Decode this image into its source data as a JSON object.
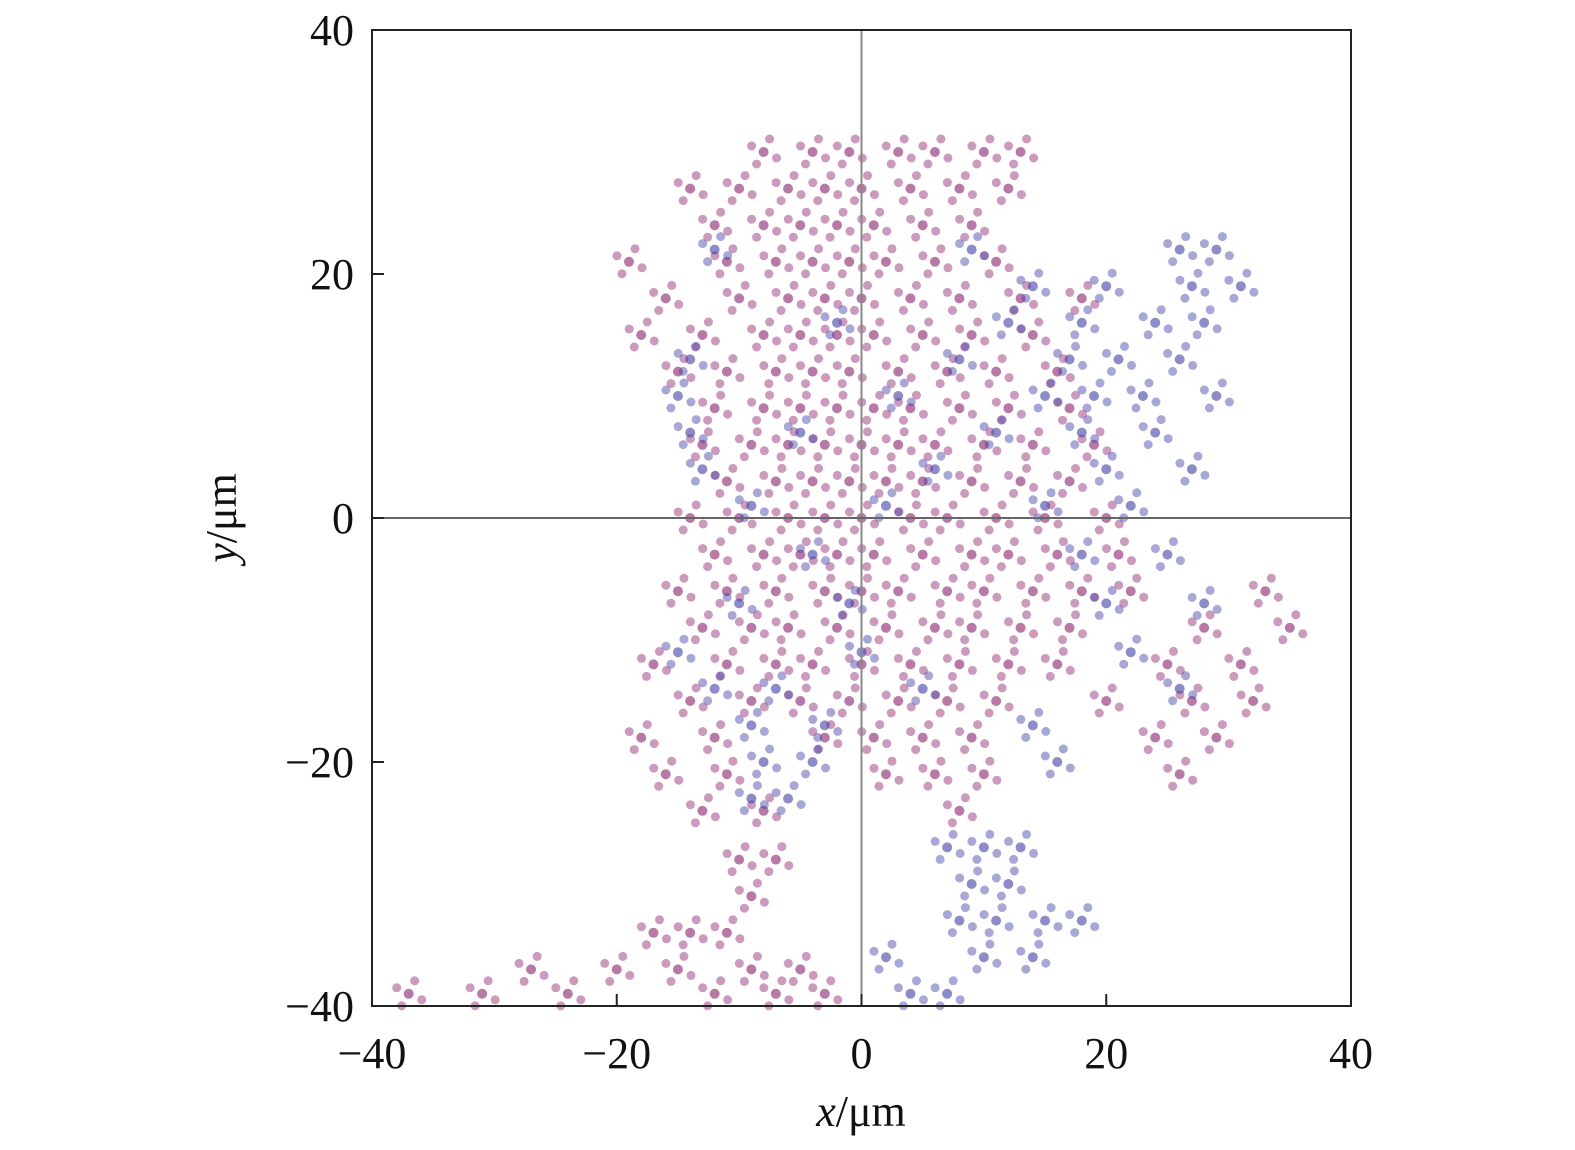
{
  "chart_data": {
    "type": "scatter",
    "xlabel_var": "x",
    "xlabel_unit": "/μm",
    "ylabel_var": "y",
    "ylabel_unit": "/μm",
    "xlim": [
      -40,
      40
    ],
    "ylim": [
      -40,
      40
    ],
    "xticks": [
      "−40",
      "−20",
      "0",
      "20",
      "40"
    ],
    "yticks": [
      "40",
      "20",
      "0",
      "−20",
      "−40"
    ],
    "xtick_values": [
      -40,
      -20,
      0,
      20,
      40
    ],
    "ytick_values": [
      40,
      20,
      0,
      -20,
      -40
    ],
    "grid": false,
    "zero_lines": true,
    "series": [
      {
        "color": "#8b1f6a",
        "points": [
          [
            -8,
            30
          ],
          [
            -4,
            30
          ],
          [
            -1,
            30
          ],
          [
            3,
            30
          ],
          [
            6,
            30
          ],
          [
            10,
            30
          ],
          [
            13,
            30
          ],
          [
            -14,
            27
          ],
          [
            -10,
            27
          ],
          [
            -6,
            27
          ],
          [
            -3,
            27
          ],
          [
            0,
            27
          ],
          [
            4,
            27
          ],
          [
            8,
            27
          ],
          [
            12,
            27
          ],
          [
            -12,
            24
          ],
          [
            -8,
            24
          ],
          [
            -5,
            24
          ],
          [
            -2,
            24
          ],
          [
            1,
            24
          ],
          [
            5,
            24
          ],
          [
            9,
            24
          ],
          [
            -19,
            21
          ],
          [
            -11,
            21
          ],
          [
            -7,
            21
          ],
          [
            -4,
            21
          ],
          [
            -1,
            21
          ],
          [
            2,
            21
          ],
          [
            6,
            21
          ],
          [
            11,
            21
          ],
          [
            -16,
            18
          ],
          [
            -10,
            18
          ],
          [
            -6,
            18
          ],
          [
            -3,
            18
          ],
          [
            0,
            18
          ],
          [
            4,
            18
          ],
          [
            8,
            18
          ],
          [
            13,
            18
          ],
          [
            18,
            18
          ],
          [
            -18,
            15
          ],
          [
            -13,
            15
          ],
          [
            -8,
            15
          ],
          [
            -5,
            15
          ],
          [
            -2,
            15
          ],
          [
            1,
            15
          ],
          [
            5,
            15
          ],
          [
            9,
            15
          ],
          [
            14,
            15
          ],
          [
            -15,
            12
          ],
          [
            -11,
            12
          ],
          [
            -7,
            12
          ],
          [
            -4,
            12
          ],
          [
            -1,
            12
          ],
          [
            3,
            12
          ],
          [
            7,
            12
          ],
          [
            11,
            12
          ],
          [
            16,
            12
          ],
          [
            -12,
            9
          ],
          [
            -8,
            9
          ],
          [
            -5,
            9
          ],
          [
            -2,
            9
          ],
          [
            1,
            9
          ],
          [
            4,
            9
          ],
          [
            8,
            9
          ],
          [
            12,
            9
          ],
          [
            17,
            9
          ],
          [
            -13,
            6
          ],
          [
            -9,
            6
          ],
          [
            -6,
            6
          ],
          [
            -3,
            6
          ],
          [
            0,
            6
          ],
          [
            3,
            6
          ],
          [
            6,
            6
          ],
          [
            10,
            6
          ],
          [
            14,
            6
          ],
          [
            19,
            6
          ],
          [
            -11,
            3
          ],
          [
            -7,
            3
          ],
          [
            -4,
            3
          ],
          [
            -1,
            3
          ],
          [
            2,
            3
          ],
          [
            5,
            3
          ],
          [
            9,
            3
          ],
          [
            13,
            3
          ],
          [
            17,
            3
          ],
          [
            -14,
            0
          ],
          [
            -10,
            0
          ],
          [
            -6,
            0
          ],
          [
            -3,
            0
          ],
          [
            0,
            0
          ],
          [
            4,
            0
          ],
          [
            7,
            0
          ],
          [
            11,
            0
          ],
          [
            15,
            0
          ],
          [
            20,
            0
          ],
          [
            -12,
            -3
          ],
          [
            -8,
            -3
          ],
          [
            -5,
            -3
          ],
          [
            -2,
            -3
          ],
          [
            1,
            -3
          ],
          [
            5,
            -3
          ],
          [
            9,
            -3
          ],
          [
            12,
            -3
          ],
          [
            16,
            -3
          ],
          [
            21,
            -3
          ],
          [
            -15,
            -6
          ],
          [
            -11,
            -6
          ],
          [
            -7,
            -6
          ],
          [
            -3,
            -6
          ],
          [
            0,
            -6
          ],
          [
            3,
            -6
          ],
          [
            7,
            -6
          ],
          [
            10,
            -6
          ],
          [
            14,
            -6
          ],
          [
            18,
            -6
          ],
          [
            22,
            -6
          ],
          [
            33,
            -6
          ],
          [
            -13,
            -9
          ],
          [
            -9,
            -9
          ],
          [
            -6,
            -9
          ],
          [
            -2,
            -9
          ],
          [
            2,
            -9
          ],
          [
            6,
            -9
          ],
          [
            9,
            -9
          ],
          [
            13,
            -9
          ],
          [
            17,
            -9
          ],
          [
            28,
            -9
          ],
          [
            35,
            -9
          ],
          [
            -17,
            -12
          ],
          [
            -11,
            -12
          ],
          [
            -7,
            -12
          ],
          [
            -4,
            -12
          ],
          [
            0,
            -12
          ],
          [
            4,
            -12
          ],
          [
            8,
            -12
          ],
          [
            12,
            -12
          ],
          [
            16,
            -12
          ],
          [
            25,
            -12
          ],
          [
            31,
            -12
          ],
          [
            -14,
            -15
          ],
          [
            -9,
            -15
          ],
          [
            -5,
            -15
          ],
          [
            -1,
            -15
          ],
          [
            3,
            -15
          ],
          [
            7,
            -15
          ],
          [
            11,
            -15
          ],
          [
            20,
            -15
          ],
          [
            27,
            -15
          ],
          [
            32,
            -15
          ],
          [
            -18,
            -18
          ],
          [
            -12,
            -18
          ],
          [
            -3,
            -18
          ],
          [
            1,
            -18
          ],
          [
            5,
            -18
          ],
          [
            9,
            -18
          ],
          [
            24,
            -18
          ],
          [
            29,
            -18
          ],
          [
            -16,
            -21
          ],
          [
            -11,
            -21
          ],
          [
            2,
            -21
          ],
          [
            6,
            -21
          ],
          [
            10,
            -21
          ],
          [
            26,
            -21
          ],
          [
            -13,
            -24
          ],
          [
            -8,
            -24
          ],
          [
            8,
            -24
          ],
          [
            -10,
            -28
          ],
          [
            -7,
            -28
          ],
          [
            -9,
            -31
          ],
          [
            -17,
            -34
          ],
          [
            -14,
            -34
          ],
          [
            -11,
            -34
          ],
          [
            -27,
            -37
          ],
          [
            -20,
            -37
          ],
          [
            -15,
            -37
          ],
          [
            -9,
            -37
          ],
          [
            -5,
            -37
          ],
          [
            -37,
            -39
          ],
          [
            -31,
            -39
          ],
          [
            -24,
            -39
          ],
          [
            -12,
            -39
          ],
          [
            -7,
            -39
          ],
          [
            -3,
            -39
          ]
        ]
      },
      {
        "color": "#3f3fa8",
        "points": [
          [
            -12,
            22
          ],
          [
            9,
            22
          ],
          [
            26,
            22
          ],
          [
            29,
            22
          ],
          [
            14,
            19
          ],
          [
            20,
            19
          ],
          [
            27,
            19
          ],
          [
            31,
            19
          ],
          [
            -2,
            16
          ],
          [
            12,
            16
          ],
          [
            18,
            16
          ],
          [
            24,
            16
          ],
          [
            28,
            16
          ],
          [
            -14,
            13
          ],
          [
            8,
            13
          ],
          [
            17,
            13
          ],
          [
            21,
            13
          ],
          [
            26,
            13
          ],
          [
            -15,
            10
          ],
          [
            3,
            10
          ],
          [
            15,
            10
          ],
          [
            19,
            10
          ],
          [
            23,
            10
          ],
          [
            29,
            10
          ],
          [
            -14,
            7
          ],
          [
            -5,
            7
          ],
          [
            11,
            7
          ],
          [
            18,
            7
          ],
          [
            24,
            7
          ],
          [
            -13,
            4
          ],
          [
            6,
            4
          ],
          [
            20,
            4
          ],
          [
            27,
            4
          ],
          [
            -9,
            1
          ],
          [
            2,
            1
          ],
          [
            15,
            1
          ],
          [
            22,
            1
          ],
          [
            -4,
            -3
          ],
          [
            18,
            -3
          ],
          [
            25,
            -3
          ],
          [
            -10,
            -7
          ],
          [
            -1,
            -7
          ],
          [
            20,
            -7
          ],
          [
            28,
            -7
          ],
          [
            -15,
            -11
          ],
          [
            0,
            -11
          ],
          [
            22,
            -11
          ],
          [
            -12,
            -14
          ],
          [
            -7,
            -14
          ],
          [
            5,
            -14
          ],
          [
            26,
            -14
          ],
          [
            -9,
            -17
          ],
          [
            -3,
            -17
          ],
          [
            14,
            -17
          ],
          [
            -8,
            -20
          ],
          [
            -4,
            -20
          ],
          [
            16,
            -20
          ],
          [
            -9,
            -23
          ],
          [
            -6,
            -23
          ],
          [
            7,
            -27
          ],
          [
            10,
            -27
          ],
          [
            13,
            -27
          ],
          [
            9,
            -30
          ],
          [
            12,
            -30
          ],
          [
            8,
            -33
          ],
          [
            11,
            -33
          ],
          [
            15,
            -33
          ],
          [
            18,
            -33
          ],
          [
            2,
            -36
          ],
          [
            10,
            -36
          ],
          [
            14,
            -36
          ],
          [
            4,
            -39
          ],
          [
            7,
            -39
          ]
        ]
      }
    ]
  }
}
